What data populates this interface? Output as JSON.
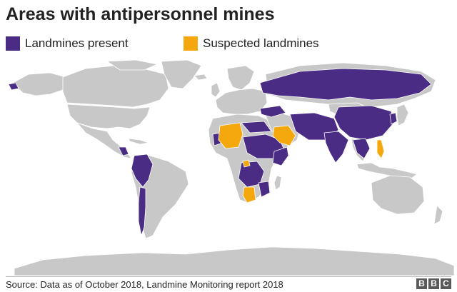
{
  "title": "Areas with antipersonnel mines",
  "legend": [
    {
      "label": "Landmines present",
      "color": "#4b2c84"
    },
    {
      "label": "Suspected landmines",
      "color": "#f5a70e"
    }
  ],
  "map": {
    "colors": {
      "land": "#c8c8c8",
      "border": "#ffffff",
      "ocean": "#ffffff"
    }
  },
  "source": "Source: Data as of October 2018, Landmine Monitoring report 2018",
  "logo": {
    "letters": [
      "B",
      "B",
      "C"
    ]
  }
}
